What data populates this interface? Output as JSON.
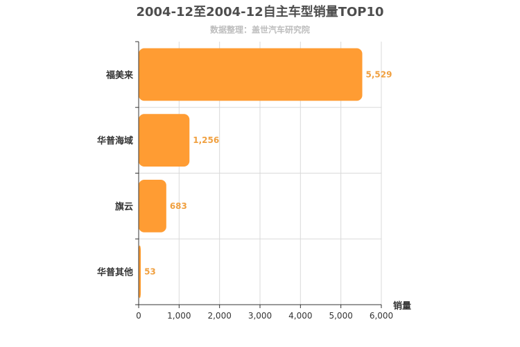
{
  "chart_data": {
    "type": "bar",
    "orientation": "horizontal",
    "title": "2004-12至2004-12自主车型销量TOP10",
    "subtitle": "数据整理：盖世汽车研究院",
    "categories": [
      "福美来",
      "华普海域",
      "旗云",
      "华普其他"
    ],
    "values": [
      5529,
      1256,
      683,
      53
    ],
    "value_labels": [
      "5,529",
      "1,256",
      "683",
      "53"
    ],
    "xlabel": "销量",
    "ylabel": "",
    "xlim": [
      0,
      6000
    ],
    "xticks": [
      0,
      1000,
      2000,
      3000,
      4000,
      5000,
      6000
    ],
    "xtick_labels": [
      "0",
      "1,000",
      "2,000",
      "3,000",
      "4,000",
      "5,000",
      "6,000"
    ],
    "grid": true,
    "bar_color": "#ff9c33",
    "label_color": "#f0a040"
  }
}
